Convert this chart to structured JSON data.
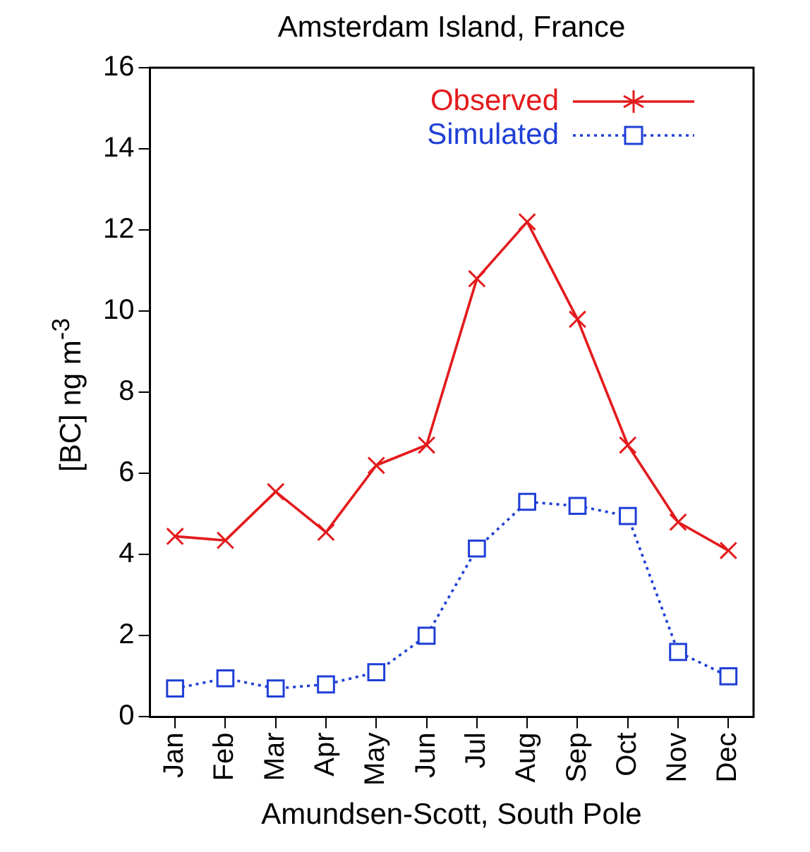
{
  "chart_data": {
    "type": "line",
    "title": "Amsterdam Island, France",
    "xlabel": "Amundsen-Scott, South Pole",
    "ylabel": "[BC] ng m$^{-3}$",
    "categories": [
      "Jan",
      "Feb",
      "Mar",
      "Apr",
      "May",
      "Jun",
      "Jul",
      "Aug",
      "Sep",
      "Oct",
      "Nov",
      "Dec"
    ],
    "series": [
      {
        "name": "Observed",
        "color": "#e31a1c",
        "marker": "cross",
        "line_style": "solid",
        "values": [
          4.45,
          4.35,
          5.55,
          4.55,
          6.2,
          6.7,
          10.8,
          12.2,
          9.8,
          6.7,
          4.8,
          4.1
        ]
      },
      {
        "name": "Simulated",
        "color": "#1f3fd6",
        "marker": "square",
        "line_style": "dotted",
        "values": [
          0.7,
          0.95,
          0.7,
          0.8,
          1.1,
          2.0,
          4.15,
          5.3,
          5.2,
          4.95,
          1.6,
          1.0
        ]
      }
    ],
    "ylim": [
      0,
      16
    ],
    "yticks": [
      0,
      2,
      4,
      6,
      8,
      10,
      12,
      14,
      16
    ],
    "grid": false,
    "legend": "top right"
  }
}
